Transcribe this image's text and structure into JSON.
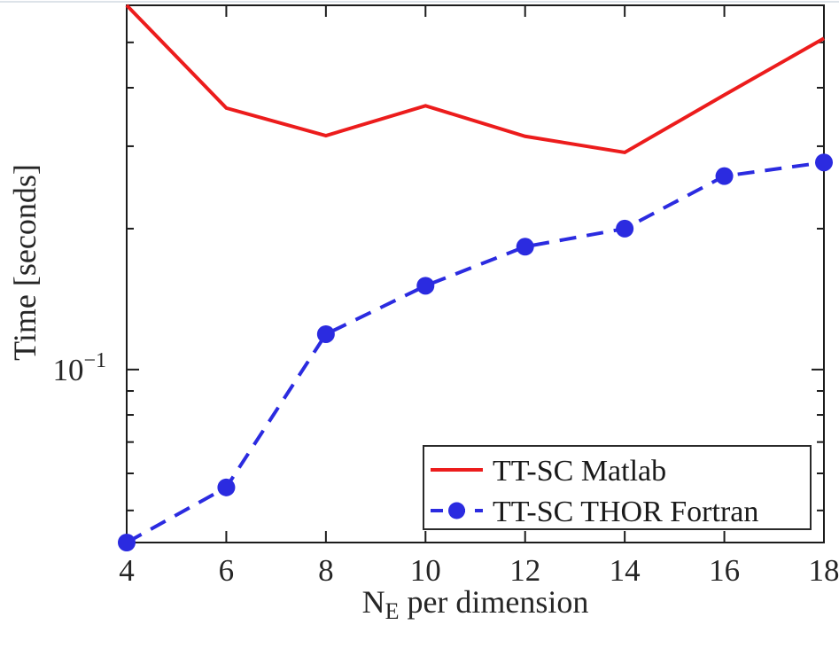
{
  "page": {
    "background": "#ffffff",
    "window_top_edge_color": "#dde3e9"
  },
  "chart_data": {
    "type": "line",
    "title": "",
    "xlabel": "N_E per dimension",
    "xlabel_parts": {
      "pre": "N",
      "sub": "E",
      "post": " per dimension"
    },
    "ylabel": "Time [seconds]",
    "yscale": "log",
    "grid": false,
    "xlim": [
      4,
      18
    ],
    "ylim": [
      0.0427,
      0.6
    ],
    "x": [
      4,
      6,
      8,
      10,
      12,
      14,
      16,
      18
    ],
    "series": [
      {
        "name": "TT-SC Matlab",
        "color": "#ec1c1c",
        "line_style": "solid",
        "marker": "none",
        "values": [
          0.6,
          0.362,
          0.316,
          0.366,
          0.315,
          0.291,
          0.386,
          0.51
        ]
      },
      {
        "name": "TT-SC THOR Fortran",
        "color": "#2b2be0",
        "line_style": "dashed",
        "marker": "circle",
        "values": [
          0.0427,
          0.056,
          0.119,
          0.151,
          0.183,
          0.2,
          0.259,
          0.277
        ]
      }
    ],
    "xticks": {
      "values": [
        4,
        6,
        8,
        10,
        12,
        14,
        16,
        18
      ],
      "labels": [
        "4",
        "6",
        "8",
        "10",
        "12",
        "14",
        "16",
        "18"
      ]
    },
    "ytick_major": {
      "value": 0.1,
      "label_base": "10",
      "label_exp": "−1"
    },
    "ytick_minor": [
      0.05,
      0.06,
      0.07,
      0.08,
      0.09,
      0.2,
      0.3,
      0.4,
      0.5
    ],
    "legend": {
      "position": "bottom-right",
      "entries": [
        "TT-SC Matlab",
        "TT-SC THOR Fortran"
      ]
    },
    "axis_color": "#1c1c1c",
    "text_color": "#262626",
    "legend_border_color": "#2a2a2a"
  }
}
